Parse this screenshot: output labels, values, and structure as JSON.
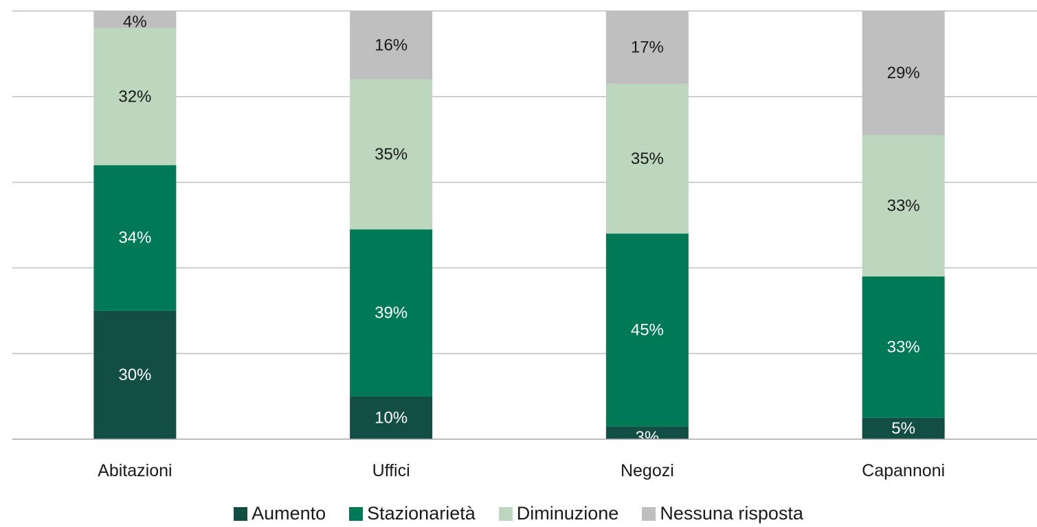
{
  "chart_data": {
    "type": "bar",
    "stacked": true,
    "categories": [
      "Abitazioni",
      "Uffici",
      "Negozi",
      "Capannoni"
    ],
    "series": [
      {
        "name": "Aumento",
        "color": "#124e44",
        "label_color": "#ffffff",
        "values": [
          30,
          10,
          3,
          5
        ]
      },
      {
        "name": "Stazionarietà",
        "color": "#007a56",
        "label_color": "#ffffff",
        "values": [
          34,
          39,
          45,
          33
        ]
      },
      {
        "name": "Diminuzione",
        "color": "#bcd7bd",
        "label_color": "#1a1a1a",
        "values": [
          32,
          35,
          35,
          33
        ]
      },
      {
        "name": "Nessuna risposta",
        "color": "#bfbfbf",
        "label_color": "#1a1a1a",
        "values": [
          4,
          16,
          17,
          29
        ]
      }
    ],
    "ylim": [
      0,
      100
    ],
    "value_suffix": "%",
    "grid": true,
    "legend_position": "bottom"
  }
}
